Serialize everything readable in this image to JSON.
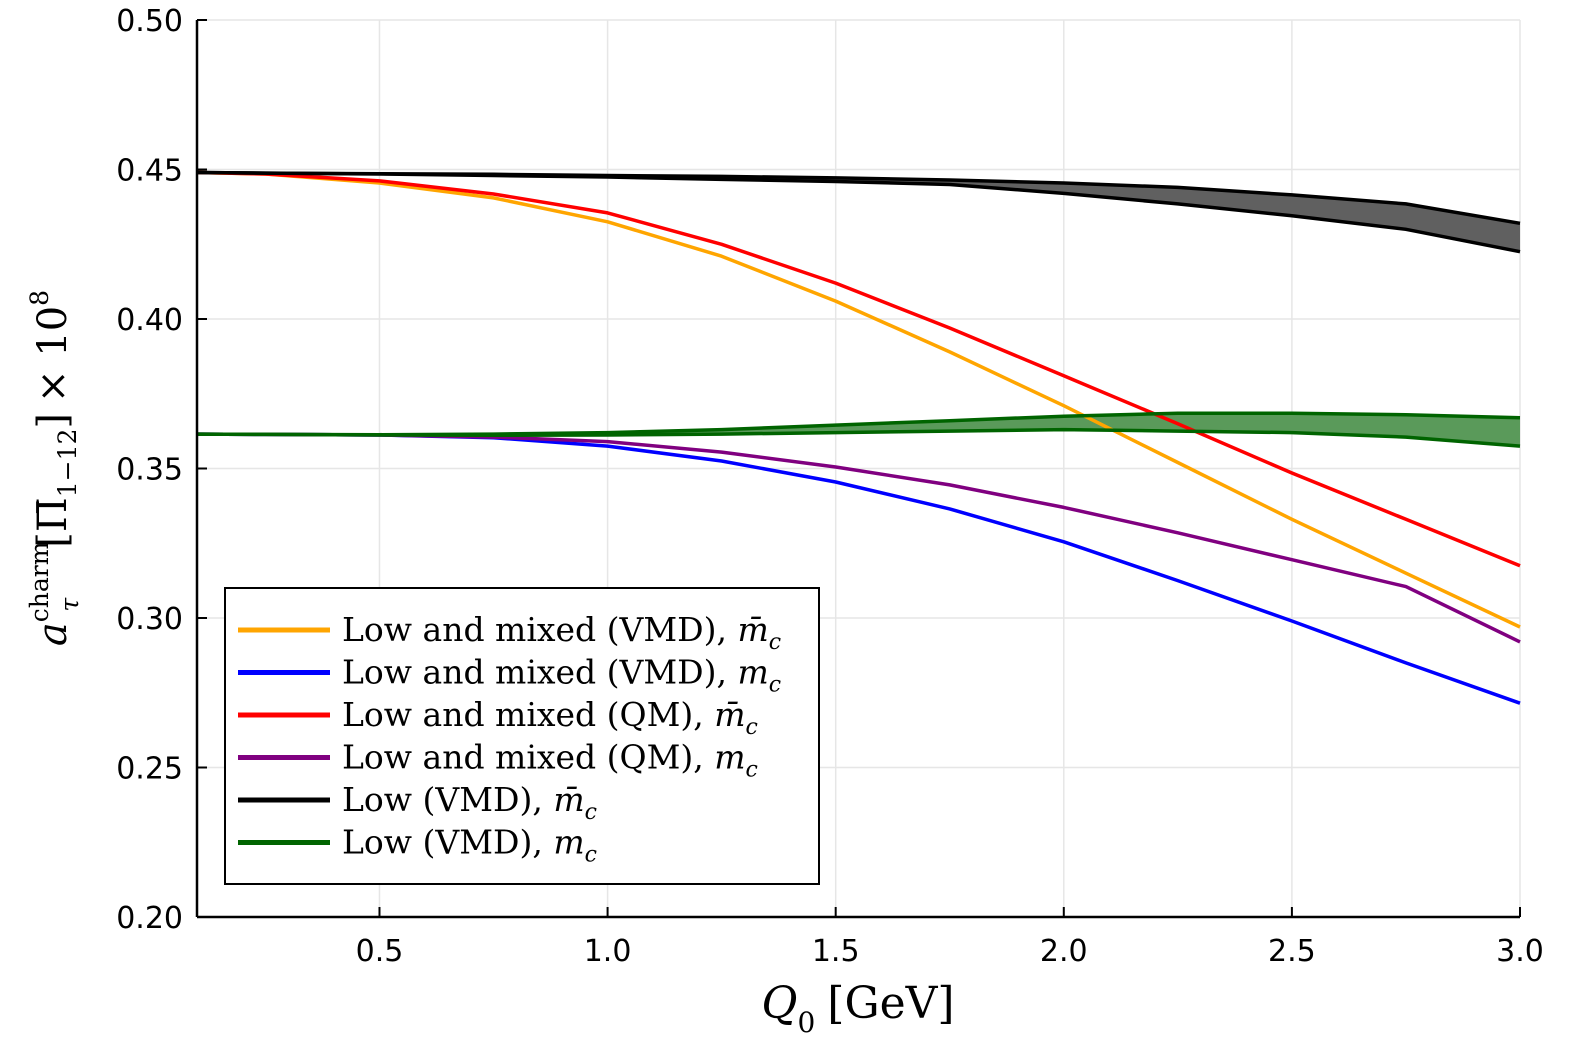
{
  "chart_data": {
    "type": "line",
    "title": "",
    "xlabel": "Q_0 [GeV]",
    "xlabel_parts": {
      "symbol": "Q",
      "sub": "0",
      "unit": "[GeV]"
    },
    "ylabel": "a_τ^charm [Π̄_1−12] × 10^8",
    "ylabel_parts": {
      "symbol": "a",
      "sub": "τ",
      "sup": "charm",
      "bracket_open": "[",
      "pi": "Π̄",
      "pi_sub": "1−12",
      "bracket_close": "]",
      "times": "× 10",
      "exp": "8"
    },
    "xlim": [
      0.1,
      3.0
    ],
    "ylim": [
      0.2,
      0.5
    ],
    "xticks": [
      0.5,
      1.0,
      1.5,
      2.0,
      2.5,
      3.0
    ],
    "xtick_labels": [
      "0.5",
      "1.0",
      "1.5",
      "2.0",
      "2.5",
      "3.0"
    ],
    "yticks": [
      0.2,
      0.25,
      0.3,
      0.35,
      0.4,
      0.45,
      0.5
    ],
    "ytick_labels": [
      "0.20",
      "0.25",
      "0.30",
      "0.35",
      "0.40",
      "0.45",
      "0.50"
    ],
    "grid": true,
    "legend_position": "bottom-left",
    "x": [
      0.1,
      0.25,
      0.5,
      0.75,
      1.0,
      1.25,
      1.5,
      1.75,
      2.0,
      2.25,
      2.5,
      2.75,
      3.0
    ],
    "series": [
      {
        "name": "Low and mixed (VMD), m̄_c",
        "label_main": "Low and mixed (VMD), ",
        "label_math": "m̄",
        "label_sub": "c",
        "color": "#ffa500",
        "values": [
          0.449,
          0.4485,
          0.4455,
          0.4405,
          0.4325,
          0.421,
          0.406,
          0.389,
          0.371,
          0.352,
          0.333,
          0.315,
          0.297
        ]
      },
      {
        "name": "Low and mixed (VMD), m_c",
        "label_main": "Low and mixed (VMD), ",
        "label_math": "m",
        "label_sub": "c",
        "color": "#0000ff",
        "values": [
          0.3615,
          0.3614,
          0.3612,
          0.3603,
          0.3575,
          0.3525,
          0.3455,
          0.3365,
          0.3255,
          0.3125,
          0.299,
          0.285,
          0.2715
        ]
      },
      {
        "name": "Low and mixed (QM), m̄_c",
        "label_main": "Low and mixed (QM), ",
        "label_math": "m̄",
        "label_sub": "c",
        "color": "#ff0000",
        "values": [
          0.449,
          0.4485,
          0.4462,
          0.4418,
          0.4355,
          0.425,
          0.412,
          0.397,
          0.381,
          0.365,
          0.3485,
          0.333,
          0.3175
        ]
      },
      {
        "name": "Low and mixed (QM), m_c",
        "label_main": "Low and mixed (QM), ",
        "label_math": "m",
        "label_sub": "c",
        "color": "#800080",
        "values": [
          0.3615,
          0.3614,
          0.3612,
          0.3605,
          0.359,
          0.3555,
          0.3505,
          0.3445,
          0.337,
          0.3285,
          0.3195,
          0.3105,
          0.292
        ]
      },
      {
        "name": "Low (VMD), m̄_c",
        "label_main": "Low (VMD), ",
        "label_math": "m̄",
        "label_sub": "c",
        "color": "#000000",
        "band_fill": "#606060",
        "upper": [
          0.449,
          0.4488,
          0.4486,
          0.4484,
          0.448,
          0.4477,
          0.4472,
          0.4465,
          0.4455,
          0.444,
          0.4415,
          0.4385,
          0.432
        ],
        "lower": [
          0.449,
          0.4488,
          0.4485,
          0.448,
          0.4475,
          0.4467,
          0.446,
          0.445,
          0.442,
          0.4385,
          0.4345,
          0.43,
          0.4225
        ]
      },
      {
        "name": "Low (VMD), m_c",
        "label_main": "Low (VMD), ",
        "label_math": "m",
        "label_sub": "c",
        "color": "#006400",
        "band_fill": "#5a9a5a",
        "upper": [
          0.3615,
          0.3614,
          0.3613,
          0.3615,
          0.362,
          0.363,
          0.3645,
          0.366,
          0.3675,
          0.3685,
          0.3685,
          0.368,
          0.367
        ],
        "lower": [
          0.3615,
          0.3614,
          0.3612,
          0.3611,
          0.3612,
          0.3615,
          0.362,
          0.3625,
          0.363,
          0.3625,
          0.362,
          0.3605,
          0.3575
        ]
      }
    ]
  }
}
